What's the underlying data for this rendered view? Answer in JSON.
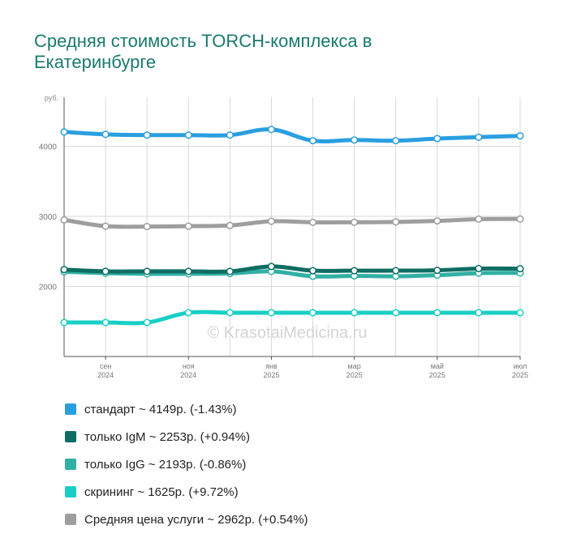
{
  "title": "Средняя стоимость TORCH-комплекса в Екатеринбурге",
  "watermark": "© KrasotaiMedicina.ru",
  "chart_data": {
    "type": "line",
    "y_unit_label": "руб.",
    "ylim": [
      1000,
      4700
    ],
    "yticks": [
      2000,
      3000,
      4000
    ],
    "grid": true,
    "legend_position": "bottom",
    "x_ticks": [
      {
        "month": "сен",
        "year": "2024"
      },
      {
        "month": "ноя",
        "year": "2024"
      },
      {
        "month": "янв",
        "year": "2025"
      },
      {
        "month": "мар",
        "year": "2025"
      },
      {
        "month": "май",
        "year": "2025"
      },
      {
        "month": "июл",
        "year": "2025"
      }
    ],
    "x": [
      "2024-08",
      "2024-09",
      "2024-10",
      "2024-11",
      "2024-12",
      "2025-01",
      "2025-02",
      "2025-03",
      "2025-04",
      "2025-05",
      "2025-06",
      "2025-07"
    ],
    "series": [
      {
        "name": "стандарт",
        "color": "#2a9fe0",
        "values": [
          4205,
          4170,
          4160,
          4160,
          4160,
          4240,
          4080,
          4090,
          4080,
          4110,
          4130,
          4149
        ]
      },
      {
        "name": "только IgM",
        "color": "#0f6d63",
        "values": [
          2240,
          2215,
          2215,
          2215,
          2215,
          2285,
          2225,
          2225,
          2225,
          2230,
          2255,
          2253
        ]
      },
      {
        "name": "только IgG",
        "color": "#32b0a4",
        "values": [
          2210,
          2190,
          2180,
          2180,
          2185,
          2215,
          2145,
          2150,
          2145,
          2160,
          2190,
          2193
        ]
      },
      {
        "name": "скрининг",
        "color": "#18cfc6",
        "values": [
          1485,
          1485,
          1485,
          1625,
          1625,
          1625,
          1625,
          1625,
          1625,
          1625,
          1625,
          1625
        ]
      },
      {
        "name": "Средняя цена услуги",
        "color": "#9e9e9e",
        "values": [
          2950,
          2860,
          2855,
          2860,
          2870,
          2930,
          2915,
          2915,
          2920,
          2935,
          2960,
          2962
        ]
      }
    ]
  },
  "legend": [
    {
      "label": "стандарт ~ 4149р. (-1.43%)",
      "color": "#2a9fe0"
    },
    {
      "label": "только IgM ~ 2253р. (+0.94%)",
      "color": "#0f6d63"
    },
    {
      "label": "только IgG ~ 2193р. (-0.86%)",
      "color": "#32b0a4"
    },
    {
      "label": "скрининг ~ 1625р. (+9.72%)",
      "color": "#18cfc6"
    },
    {
      "label": "Средняя цена услуги ~ 2962р. (+0.54%)",
      "color": "#9e9e9e"
    }
  ]
}
